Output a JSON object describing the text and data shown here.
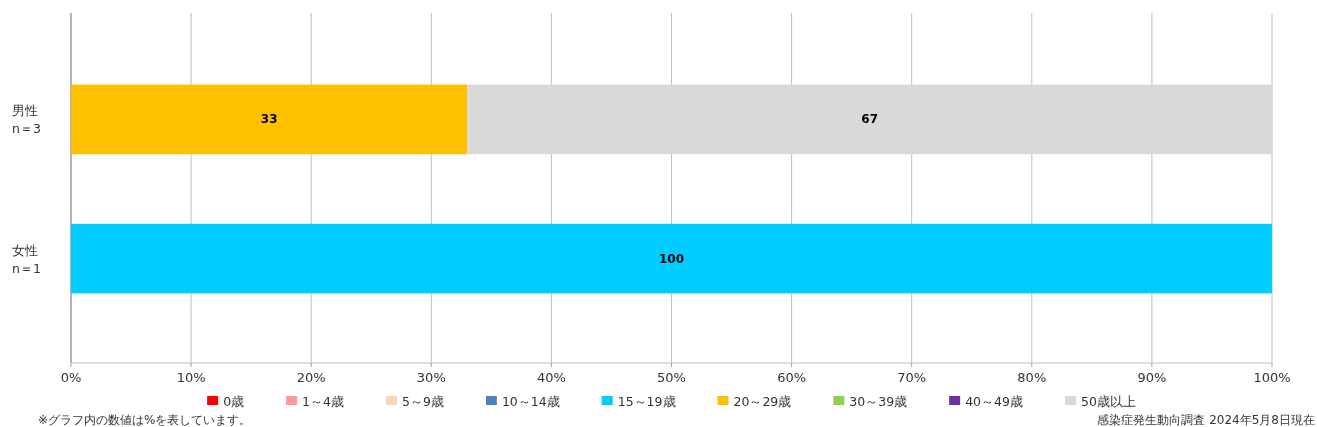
{
  "chart_data": {
    "type": "bar",
    "orientation": "horizontal",
    "stacked": true,
    "categories": [
      "男性\nn＝3",
      "女性\nn＝1"
    ],
    "series": [
      {
        "name": "0歳",
        "color": "#ff0000",
        "values": [
          null,
          null
        ]
      },
      {
        "name": "1～4歳",
        "color": "#ff9999",
        "values": [
          null,
          null
        ]
      },
      {
        "name": "5～9歳",
        "color": "#fcd5b4",
        "values": [
          null,
          null
        ]
      },
      {
        "name": "10～14歳",
        "color": "#4f81bd",
        "values": [
          null,
          null
        ]
      },
      {
        "name": "15～19歳",
        "color": "#00ccff",
        "values": [
          null,
          100
        ]
      },
      {
        "name": "20～29歳",
        "color": "#ffc000",
        "values": [
          33,
          null
        ]
      },
      {
        "name": "30～39歳",
        "color": "#92d050",
        "values": [
          null,
          null
        ]
      },
      {
        "name": "40～49歳",
        "color": "#7030a0",
        "values": [
          null,
          null
        ]
      },
      {
        "name": "50歳以上",
        "color": "#d9d9d9",
        "values": [
          67,
          null
        ]
      }
    ],
    "xlim": [
      0,
      100
    ],
    "xticks": [
      {
        "value": 0,
        "label": "0%"
      },
      {
        "value": 10,
        "label": "10%"
      },
      {
        "value": 20,
        "label": "20%"
      },
      {
        "value": 30,
        "label": "30%"
      },
      {
        "value": 40,
        "label": "40%"
      },
      {
        "value": 50,
        "label": "50%"
      },
      {
        "value": 60,
        "label": "60%"
      },
      {
        "value": 70,
        "label": "70%"
      },
      {
        "value": 80,
        "label": "80%"
      },
      {
        "value": 90,
        "label": "90%"
      },
      {
        "value": 100,
        "label": "100%"
      }
    ],
    "grid": "x",
    "legend": "bottom",
    "data_labels": true,
    "annotations": [
      "※グラフ内の数値は%を表しています。",
      "感染症発生動向調査 2024年5月8日現在"
    ]
  }
}
